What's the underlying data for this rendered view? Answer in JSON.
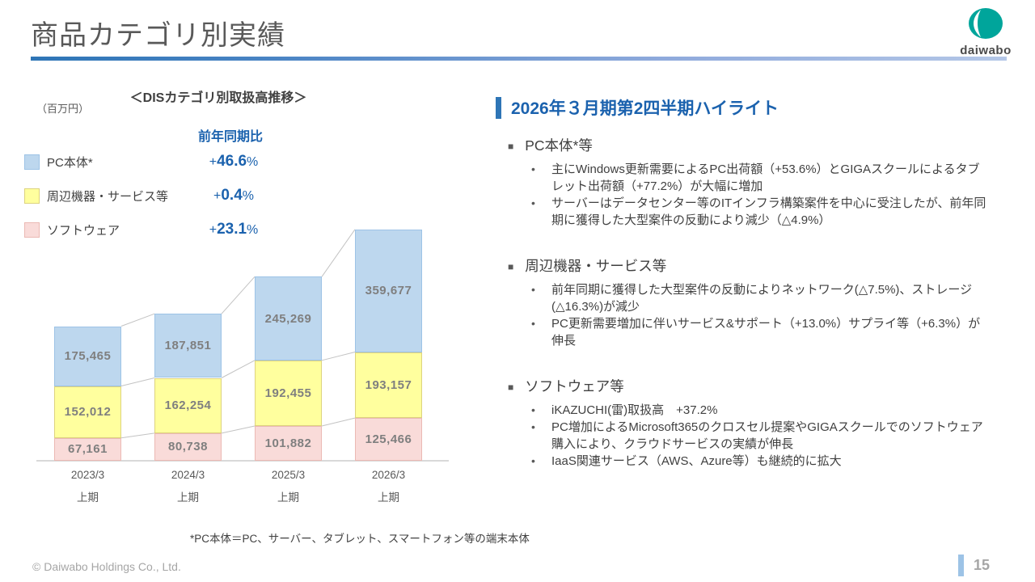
{
  "slide": {
    "title": "商品カテゴリ別実績"
  },
  "logo": {
    "text": "daiwabo",
    "color": "#00A59B"
  },
  "chart": {
    "unit_label": "（百万円）",
    "title": "＜DISカテゴリ別取扱高推移＞",
    "yoy_header": "前年同期比",
    "legend": [
      {
        "label": "PC本体*",
        "sign": "+",
        "value": "46.6",
        "suffix": "%",
        "color": "#BDD7EE",
        "border": "#9DC3E6"
      },
      {
        "label": "周辺機器・サービス等",
        "sign": "+",
        "value": "0.4",
        "suffix": "%",
        "color": "#FFFF9E",
        "border": "#DDD37E"
      },
      {
        "label": "ソフトウェア",
        "sign": "+",
        "value": "23.1",
        "suffix": "%",
        "color": "#F9DBD9",
        "border": "#EBB9B4"
      }
    ]
  },
  "chart_data": {
    "type": "bar",
    "stacked": true,
    "title": "＜DISカテゴリ別取扱高推移＞",
    "unit": "百万円",
    "categories": [
      "2023/3",
      "2024/3",
      "2025/3",
      "2026/3"
    ],
    "category_sub": "上期",
    "series": [
      {
        "name": "ソフトウェア",
        "color": "#F9DBD9",
        "border": "#EBB9B4",
        "values": [
          67161,
          80738,
          101882,
          125466
        ],
        "yoy": "+23.1%"
      },
      {
        "name": "周辺機器・サービス等",
        "color": "#FFFF9E",
        "border": "#DDD37E",
        "values": [
          152012,
          162254,
          192455,
          193157
        ],
        "yoy": "+0.4%"
      },
      {
        "name": "PC本体*",
        "color": "#BDD7EE",
        "border": "#9DC3E6",
        "values": [
          175465,
          187851,
          245269,
          359677
        ],
        "yoy": "+46.6%"
      }
    ],
    "ylim": [
      0,
      700000
    ],
    "grid": false,
    "legend_position": "upper-left"
  },
  "highlights": {
    "heading": "2026年３月期第2四半期ハイライト",
    "sections": [
      {
        "title": "PC本体*等",
        "bullets": [
          "主にWindows更新需要によるPC出荷額（+53.6%）とGIGAスクールによるタブレット出荷額（+77.2%）が大幅に増加",
          "サーバーはデータセンター等のITインフラ構築案件を中心に受注したが、前年同期に獲得した大型案件の反動により減少（△4.9%）"
        ]
      },
      {
        "title": "周辺機器・サービス等",
        "bullets": [
          "前年同期に獲得した大型案件の反動によりネットワーク(△7.5%)、ストレージ(△16.3%)が減少",
          "PC更新需要増加に伴いサービス&サポート（+13.0%）サプライ等（+6.3%）が伸長"
        ]
      },
      {
        "title": "ソフトウェア等",
        "bullets": [
          "iKAZUCHI(雷)取扱高　+37.2%",
          "PC増加によるMicrosoft365のクロスセル提案やGIGAスクールでのソフトウェア購入により、クラウドサービスの実績が伸長",
          "IaaS関連サービス（AWS、Azure等）も継続的に拡大"
        ]
      }
    ]
  },
  "footnote": "*PC本体＝PC、サーバー、タブレット、スマートフォン等の端末本体",
  "footer": {
    "copyright": "© Daiwabo Holdings Co., Ltd.",
    "page": "15"
  }
}
